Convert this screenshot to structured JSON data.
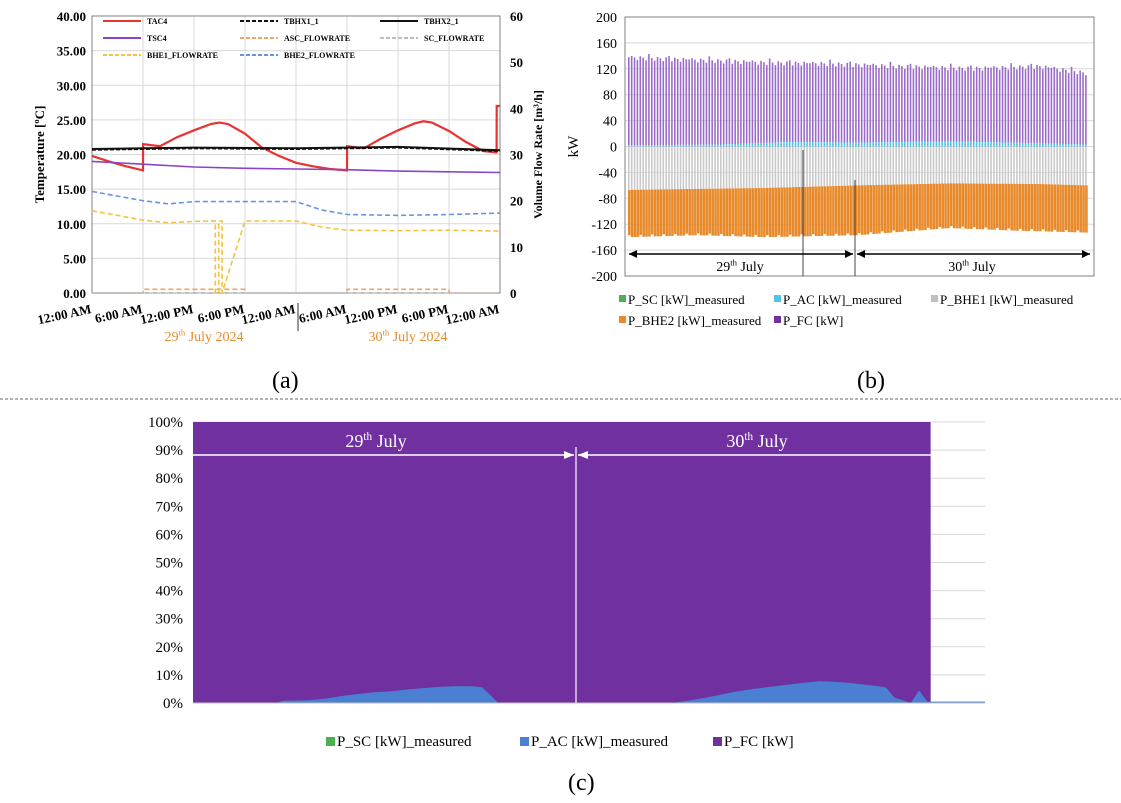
{
  "panel_labels": {
    "a": "(a)",
    "b": "(b)",
    "c": "(c)"
  },
  "colors": {
    "TAC4": "#e8332f",
    "TBHX1_1": "#111111",
    "TBHX2_1": "#111111",
    "TSC4": "#8a45c4",
    "ASC_FLOWRATE": "#f0a36e",
    "SC_FLOWRATE": "#bdbdbd",
    "BHE1_FLOWRATE": "#f5c242",
    "BHE2_FLOWRATE": "#6a95dc",
    "P_SC": "#4caf50",
    "P_AC": "#4a7fd1",
    "P_AC_b": "#4fc3e8",
    "P_BHE1": "#bfbfbf",
    "P_BHE2": "#e8892a",
    "P_FC": "#7030a0",
    "date_orange": "#e8892a"
  },
  "chart_data": [
    {
      "type": "line",
      "panel": "(a)",
      "ylabel": "Temperature [ºC]",
      "y2label": "Volume Flow Rate [m³/h]",
      "ylim": [
        0,
        40
      ],
      "y2lim": [
        0,
        60
      ],
      "yticks": [
        "0.00",
        "5.00",
        "10.00",
        "15.00",
        "20.00",
        "25.00",
        "30.00",
        "35.00",
        "40.00"
      ],
      "y2ticks": [
        "0",
        "10",
        "20",
        "30",
        "40",
        "50",
        "60"
      ],
      "xlim": [
        0,
        48
      ],
      "xticks": [
        {
          "x": 0,
          "label": "12:00 AM"
        },
        {
          "x": 6,
          "label": "6:00 AM"
        },
        {
          "x": 12,
          "label": "12:00 PM"
        },
        {
          "x": 18,
          "label": "6:00 PM"
        },
        {
          "x": 24,
          "label": "12:00 AM"
        },
        {
          "x": 30,
          "label": "6:00 AM"
        },
        {
          "x": 36,
          "label": "12:00 PM"
        },
        {
          "x": 42,
          "label": "6:00 PM"
        },
        {
          "x": 48,
          "label": "12:00 AM"
        }
      ],
      "date_labels": [
        {
          "x": 12,
          "text": "29",
          "sup": "th",
          "rest": " July 2024"
        },
        {
          "x": 36,
          "text": "30",
          "sup": "th",
          "rest": " July 2024"
        }
      ],
      "legend": [
        "TAC4",
        "TBHX1_1",
        "TBHX2_1",
        "TSC4",
        "ASC_FLOWRATE",
        "SC_FLOWRATE",
        "BHE1_FLOWRATE",
        "BHE2_FLOWRATE"
      ],
      "series": [
        {
          "name": "TAC4",
          "axis": "left",
          "style": "solid",
          "x": [
            0,
            2,
            4,
            6,
            6.01,
            8,
            10,
            12,
            14,
            15,
            16,
            18,
            20,
            22,
            24,
            26,
            28,
            30,
            30.01,
            32,
            34,
            36,
            38,
            39,
            40,
            42,
            44,
            46,
            47.6,
            47.61,
            48
          ],
          "y": [
            19.8,
            19.0,
            18.3,
            17.7,
            21.5,
            21.2,
            22.5,
            23.5,
            24.4,
            24.6,
            24.4,
            23.0,
            21.0,
            19.8,
            18.8,
            18.3,
            17.9,
            17.7,
            21.2,
            20.9,
            22.3,
            23.5,
            24.5,
            24.8,
            24.6,
            23.4,
            21.8,
            20.5,
            20.3,
            27.0,
            27.0
          ]
        },
        {
          "name": "TBHX1_1",
          "axis": "left",
          "style": "dash",
          "x": [
            0,
            12,
            24,
            36,
            48
          ],
          "y": [
            20.7,
            20.9,
            20.8,
            21.0,
            20.5
          ]
        },
        {
          "name": "TBHX2_1",
          "axis": "left",
          "style": "solid",
          "x": [
            0,
            12,
            24,
            36,
            48
          ],
          "y": [
            20.8,
            21.0,
            20.9,
            21.1,
            20.6
          ]
        },
        {
          "name": "TSC4",
          "axis": "left",
          "style": "solid",
          "x": [
            0,
            6,
            12,
            18,
            24,
            30,
            36,
            42,
            48
          ],
          "y": [
            19.0,
            18.6,
            18.2,
            18.0,
            17.9,
            17.8,
            17.6,
            17.5,
            17.4
          ]
        },
        {
          "name": "ASC_FLOWRATE",
          "axis": "right",
          "style": "dash",
          "x": [
            0,
            6,
            6.01,
            18,
            18.01,
            24,
            30,
            30.01,
            42,
            42.01,
            48
          ],
          "y": [
            0,
            0,
            0.8,
            0.8,
            0,
            0,
            0,
            0.8,
            0.8,
            0,
            0
          ]
        },
        {
          "name": "SC_FLOWRATE",
          "axis": "right",
          "style": "dash",
          "x": [
            0,
            48
          ],
          "y": [
            0,
            0
          ]
        },
        {
          "name": "BHE1_FLOWRATE",
          "axis": "right",
          "style": "dash",
          "x": [
            0,
            3,
            6,
            9,
            12,
            14.5,
            14.51,
            14.9,
            14.91,
            15.3,
            15.31,
            18,
            24,
            27,
            30,
            36,
            42,
            48
          ],
          "y": [
            17.8,
            16.8,
            15.8,
            15.2,
            15.5,
            15.6,
            0,
            0,
            15.6,
            15.6,
            0,
            15.6,
            15.6,
            14.3,
            13.6,
            13.5,
            13.6,
            13.4
          ]
        },
        {
          "name": "BHE2_FLOWRATE",
          "axis": "right",
          "style": "dash",
          "x": [
            0,
            3,
            6,
            9,
            12,
            18,
            24,
            27,
            30,
            36,
            42,
            48
          ],
          "y": [
            22.0,
            21.0,
            20.0,
            19.3,
            19.8,
            19.8,
            19.8,
            18.0,
            17.0,
            16.8,
            17.0,
            17.3
          ]
        }
      ]
    },
    {
      "type": "bar",
      "panel": "(b)",
      "ylabel": "kW",
      "ylim": [
        -200,
        200
      ],
      "yticks": [
        "200",
        "160",
        "120",
        "80",
        "40",
        "0",
        "-40",
        "-80",
        "-120",
        "-160",
        "-200"
      ],
      "stacked": true,
      "bar_count": 160,
      "legend": [
        "P_SC [kW]_measured",
        "P_AC [kW]_measured",
        "P_BHE1 [kW]_measured",
        "P_BHE2 [kW]_measured",
        "P_FC [kW]"
      ],
      "annotations": [
        {
          "text": "29",
          "sup": "th",
          "rest": " July"
        },
        {
          "text": "30",
          "sup": "th",
          "rest": " July"
        }
      ],
      "profiles": {
        "P_FC_top": [
          [
            0,
            138
          ],
          [
            0.15,
            134
          ],
          [
            0.3,
            130
          ],
          [
            0.45,
            128
          ],
          [
            0.6,
            124
          ],
          [
            0.75,
            121
          ],
          [
            0.9,
            124
          ],
          [
            1,
            114
          ]
        ],
        "P_AC": [
          [
            0,
            2
          ],
          [
            0.2,
            3
          ],
          [
            0.35,
            7
          ],
          [
            0.5,
            6
          ],
          [
            0.7,
            8
          ],
          [
            0.9,
            5
          ],
          [
            1,
            3
          ]
        ],
        "P_BHE1_bottom": [
          [
            0,
            -67
          ],
          [
            0.3,
            -64
          ],
          [
            0.5,
            -60
          ],
          [
            0.7,
            -57
          ],
          [
            0.9,
            -58
          ],
          [
            1,
            -60
          ]
        ],
        "P_BHE2_bottom": [
          [
            0,
            -140
          ],
          [
            0.15,
            -137
          ],
          [
            0.3,
            -140
          ],
          [
            0.5,
            -137
          ],
          [
            0.7,
            -126
          ],
          [
            0.85,
            -130
          ],
          [
            1,
            -133
          ]
        ]
      }
    },
    {
      "type": "area",
      "panel": "(c)",
      "stacked_percent": true,
      "ylim": [
        0,
        100
      ],
      "yticks": [
        "0%",
        "10%",
        "20%",
        "30%",
        "40%",
        "50%",
        "60%",
        "70%",
        "80%",
        "90%",
        "100%"
      ],
      "legend": [
        "P_SC [kW]_measured",
        "P_AC [kW]_measured",
        "P_FC [kW]"
      ],
      "annotations": [
        {
          "text": "29",
          "sup": "th",
          "rest": " July"
        },
        {
          "text": "30",
          "sup": "th",
          "rest": " July"
        }
      ],
      "series": [
        {
          "name": "P_SC [kW]_measured",
          "x": [
            0,
            48
          ],
          "y": [
            0,
            0
          ]
        },
        {
          "name": "P_AC [kW]_measured",
          "x": [
            0,
            5,
            5.5,
            7,
            8,
            9,
            10,
            11,
            12,
            13,
            14,
            15,
            16,
            17,
            17.5,
            18,
            18.5,
            24,
            29,
            30,
            31,
            32,
            33,
            34,
            35,
            36,
            37,
            38,
            39,
            40,
            41,
            41.5,
            42,
            42.5,
            43.5,
            44,
            44.5,
            48
          ],
          "y": [
            0,
            0,
            0.8,
            1.0,
            1.5,
            2.5,
            3.2,
            3.8,
            4.2,
            4.8,
            5.3,
            5.8,
            6.0,
            5.9,
            5.6,
            3.0,
            0,
            0,
            0,
            0.8,
            1.8,
            3.0,
            4.2,
            5.0,
            5.8,
            6.5,
            7.2,
            7.8,
            7.5,
            7.0,
            6.3,
            6.0,
            5.5,
            2.0,
            0,
            4.5,
            0.5,
            0.5
          ]
        },
        {
          "name": "P_FC [kW]",
          "x": [
            0,
            44.7,
            44.71,
            48
          ],
          "y": [
            100,
            100,
            0,
            0
          ]
        }
      ]
    }
  ]
}
